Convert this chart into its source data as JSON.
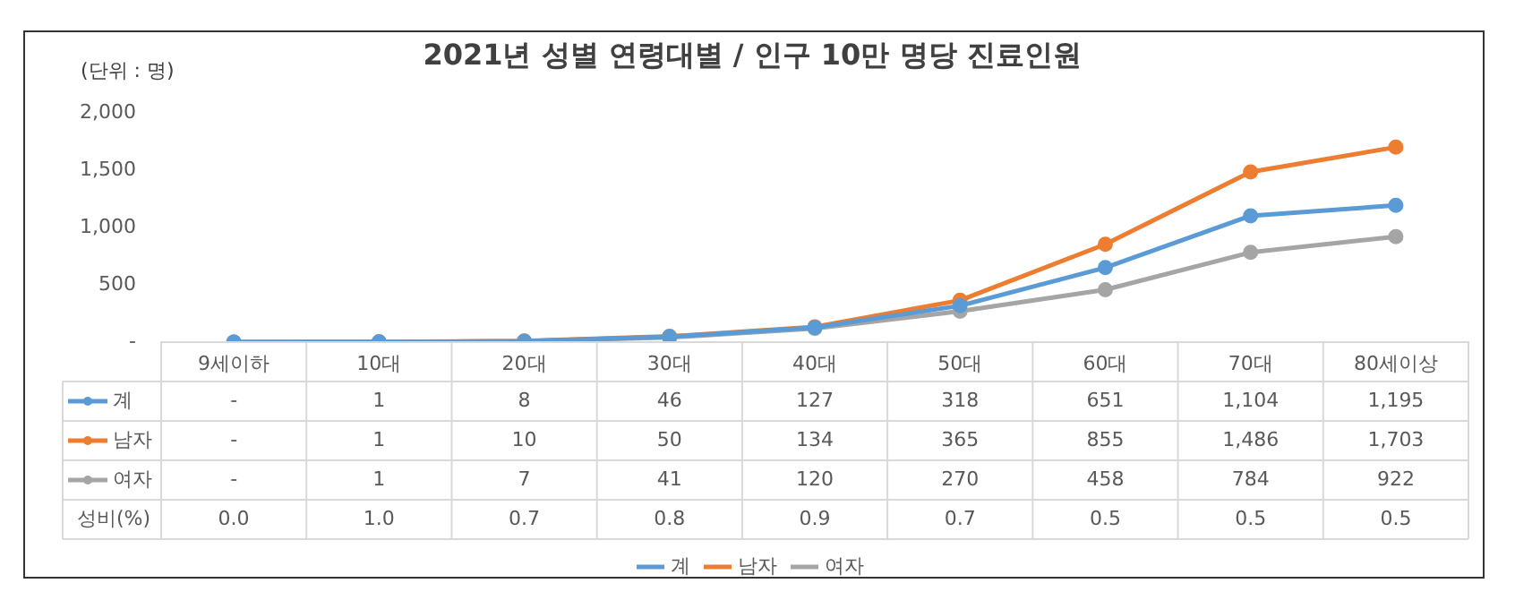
{
  "chart_data": {
    "type": "line",
    "title": "2021년 성별 연령대별 / 인구 10만 명당 진료인원",
    "ylabel": "(단위 : 명)",
    "categories": [
      "9세이하",
      "10대",
      "20대",
      "30대",
      "40대",
      "50대",
      "60대",
      "70대",
      "80세이상"
    ],
    "series": [
      {
        "name": "계",
        "color": "#5b9bd5",
        "values": [
          0,
          1,
          8,
          46,
          127,
          318,
          651,
          1104,
          1195
        ],
        "value_labels": [
          "-",
          "1",
          "8",
          "46",
          "127",
          "318",
          "651",
          "1,104",
          "1,195"
        ]
      },
      {
        "name": "남자",
        "color": "#ed7d31",
        "values": [
          0,
          1,
          10,
          50,
          134,
          365,
          855,
          1486,
          1703
        ],
        "value_labels": [
          "-",
          "1",
          "10",
          "50",
          "134",
          "365",
          "855",
          "1,486",
          "1,703"
        ]
      },
      {
        "name": "여자",
        "color": "#a5a5a5",
        "values": [
          0,
          1,
          7,
          41,
          120,
          270,
          458,
          784,
          922
        ],
        "value_labels": [
          "-",
          "1",
          "7",
          "41",
          "120",
          "270",
          "458",
          "784",
          "922"
        ]
      }
    ],
    "ylim": [
      0,
      2000
    ],
    "yticks": [
      {
        "value": 0,
        "label": "-"
      },
      {
        "value": 500,
        "label": "500"
      },
      {
        "value": 1000,
        "label": "1,000"
      },
      {
        "value": 1500,
        "label": "1,500"
      },
      {
        "value": 2000,
        "label": "2,000"
      }
    ],
    "legend": "bottom",
    "marker": "circle",
    "annotations": [
      "성비(%)",
      "0.0",
      "1.0",
      "0.7",
      "0.8",
      "0.9",
      "0.7",
      "0.5",
      "0.5",
      "0.5"
    ]
  }
}
